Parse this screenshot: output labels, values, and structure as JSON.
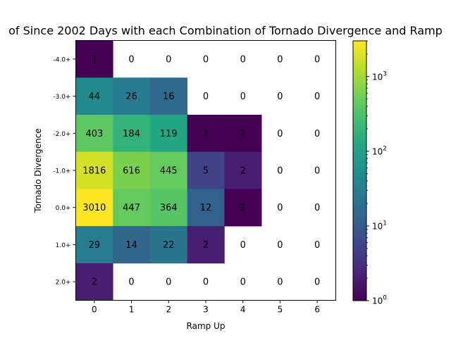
{
  "chart_data": {
    "type": "heatmap",
    "title": "of Since 2002 Days with each Combination of Tornado Divergence and Ramp",
    "xlabel": "Ramp Up",
    "ylabel": "Tornado Divergence",
    "x_categories": [
      "0",
      "1",
      "2",
      "3",
      "4",
      "5",
      "6"
    ],
    "y_categories": [
      "-4.0+",
      "-3.0+",
      "-2.0+",
      "-1.0+",
      "0.0+",
      "1.0+",
      "2.0+"
    ],
    "values": [
      [
        1,
        0,
        0,
        0,
        0,
        0,
        0
      ],
      [
        44,
        26,
        16,
        0,
        0,
        0,
        0
      ],
      [
        403,
        184,
        119,
        1,
        1,
        0,
        0
      ],
      [
        1816,
        616,
        445,
        5,
        2,
        0,
        0
      ],
      [
        3010,
        447,
        364,
        12,
        1,
        0,
        0
      ],
      [
        29,
        14,
        22,
        2,
        0,
        0,
        0
      ],
      [
        2,
        0,
        0,
        0,
        0,
        0,
        0
      ]
    ],
    "zero_cells_colored": false,
    "colormap": "viridis",
    "color_scale": "log",
    "colorbar": {
      "range": [
        1,
        3010
      ],
      "ticks": [
        {
          "value": 1,
          "base": "10",
          "exp": "0"
        },
        {
          "value": 10,
          "base": "10",
          "exp": "1"
        },
        {
          "value": 100,
          "base": "10",
          "exp": "2"
        },
        {
          "value": 1000,
          "base": "10",
          "exp": "3"
        }
      ]
    },
    "grid": false,
    "legend": "none"
  }
}
